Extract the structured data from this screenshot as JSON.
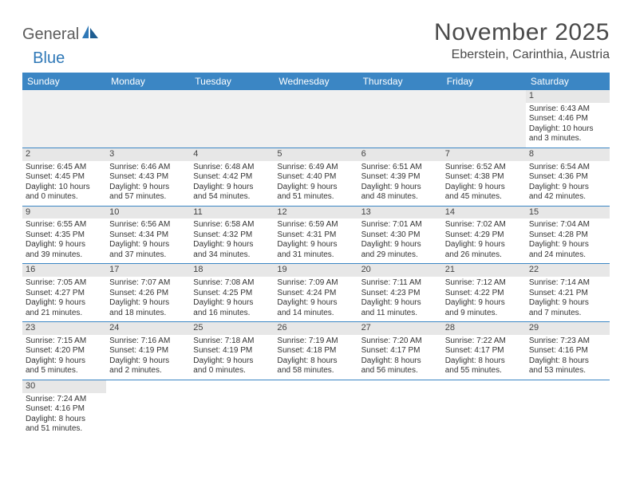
{
  "logo": {
    "text1": "General",
    "text2": "Blue"
  },
  "title": "November 2025",
  "location": "Eberstein, Carinthia, Austria",
  "colors": {
    "header_bg": "#3b86c4",
    "header_text": "#ffffff",
    "daynum_bg": "#e7e7e7",
    "row_divider": "#3b86c4",
    "empty_bg": "#f0f0f0",
    "body_text": "#333333",
    "logo_gray": "#5b5b5b",
    "logo_blue": "#2f78b7"
  },
  "weekdays": [
    "Sunday",
    "Monday",
    "Tuesday",
    "Wednesday",
    "Thursday",
    "Friday",
    "Saturday"
  ],
  "grid": [
    [
      {
        "empty": true
      },
      {
        "empty": true
      },
      {
        "empty": true
      },
      {
        "empty": true
      },
      {
        "empty": true
      },
      {
        "empty": true
      },
      {
        "day": "1",
        "sunrise": "Sunrise: 6:43 AM",
        "sunset": "Sunset: 4:46 PM",
        "daylight1": "Daylight: 10 hours",
        "daylight2": "and 3 minutes."
      }
    ],
    [
      {
        "day": "2",
        "sunrise": "Sunrise: 6:45 AM",
        "sunset": "Sunset: 4:45 PM",
        "daylight1": "Daylight: 10 hours",
        "daylight2": "and 0 minutes."
      },
      {
        "day": "3",
        "sunrise": "Sunrise: 6:46 AM",
        "sunset": "Sunset: 4:43 PM",
        "daylight1": "Daylight: 9 hours",
        "daylight2": "and 57 minutes."
      },
      {
        "day": "4",
        "sunrise": "Sunrise: 6:48 AM",
        "sunset": "Sunset: 4:42 PM",
        "daylight1": "Daylight: 9 hours",
        "daylight2": "and 54 minutes."
      },
      {
        "day": "5",
        "sunrise": "Sunrise: 6:49 AM",
        "sunset": "Sunset: 4:40 PM",
        "daylight1": "Daylight: 9 hours",
        "daylight2": "and 51 minutes."
      },
      {
        "day": "6",
        "sunrise": "Sunrise: 6:51 AM",
        "sunset": "Sunset: 4:39 PM",
        "daylight1": "Daylight: 9 hours",
        "daylight2": "and 48 minutes."
      },
      {
        "day": "7",
        "sunrise": "Sunrise: 6:52 AM",
        "sunset": "Sunset: 4:38 PM",
        "daylight1": "Daylight: 9 hours",
        "daylight2": "and 45 minutes."
      },
      {
        "day": "8",
        "sunrise": "Sunrise: 6:54 AM",
        "sunset": "Sunset: 4:36 PM",
        "daylight1": "Daylight: 9 hours",
        "daylight2": "and 42 minutes."
      }
    ],
    [
      {
        "day": "9",
        "sunrise": "Sunrise: 6:55 AM",
        "sunset": "Sunset: 4:35 PM",
        "daylight1": "Daylight: 9 hours",
        "daylight2": "and 39 minutes."
      },
      {
        "day": "10",
        "sunrise": "Sunrise: 6:56 AM",
        "sunset": "Sunset: 4:34 PM",
        "daylight1": "Daylight: 9 hours",
        "daylight2": "and 37 minutes."
      },
      {
        "day": "11",
        "sunrise": "Sunrise: 6:58 AM",
        "sunset": "Sunset: 4:32 PM",
        "daylight1": "Daylight: 9 hours",
        "daylight2": "and 34 minutes."
      },
      {
        "day": "12",
        "sunrise": "Sunrise: 6:59 AM",
        "sunset": "Sunset: 4:31 PM",
        "daylight1": "Daylight: 9 hours",
        "daylight2": "and 31 minutes."
      },
      {
        "day": "13",
        "sunrise": "Sunrise: 7:01 AM",
        "sunset": "Sunset: 4:30 PM",
        "daylight1": "Daylight: 9 hours",
        "daylight2": "and 29 minutes."
      },
      {
        "day": "14",
        "sunrise": "Sunrise: 7:02 AM",
        "sunset": "Sunset: 4:29 PM",
        "daylight1": "Daylight: 9 hours",
        "daylight2": "and 26 minutes."
      },
      {
        "day": "15",
        "sunrise": "Sunrise: 7:04 AM",
        "sunset": "Sunset: 4:28 PM",
        "daylight1": "Daylight: 9 hours",
        "daylight2": "and 24 minutes."
      }
    ],
    [
      {
        "day": "16",
        "sunrise": "Sunrise: 7:05 AM",
        "sunset": "Sunset: 4:27 PM",
        "daylight1": "Daylight: 9 hours",
        "daylight2": "and 21 minutes."
      },
      {
        "day": "17",
        "sunrise": "Sunrise: 7:07 AM",
        "sunset": "Sunset: 4:26 PM",
        "daylight1": "Daylight: 9 hours",
        "daylight2": "and 18 minutes."
      },
      {
        "day": "18",
        "sunrise": "Sunrise: 7:08 AM",
        "sunset": "Sunset: 4:25 PM",
        "daylight1": "Daylight: 9 hours",
        "daylight2": "and 16 minutes."
      },
      {
        "day": "19",
        "sunrise": "Sunrise: 7:09 AM",
        "sunset": "Sunset: 4:24 PM",
        "daylight1": "Daylight: 9 hours",
        "daylight2": "and 14 minutes."
      },
      {
        "day": "20",
        "sunrise": "Sunrise: 7:11 AM",
        "sunset": "Sunset: 4:23 PM",
        "daylight1": "Daylight: 9 hours",
        "daylight2": "and 11 minutes."
      },
      {
        "day": "21",
        "sunrise": "Sunrise: 7:12 AM",
        "sunset": "Sunset: 4:22 PM",
        "daylight1": "Daylight: 9 hours",
        "daylight2": "and 9 minutes."
      },
      {
        "day": "22",
        "sunrise": "Sunrise: 7:14 AM",
        "sunset": "Sunset: 4:21 PM",
        "daylight1": "Daylight: 9 hours",
        "daylight2": "and 7 minutes."
      }
    ],
    [
      {
        "day": "23",
        "sunrise": "Sunrise: 7:15 AM",
        "sunset": "Sunset: 4:20 PM",
        "daylight1": "Daylight: 9 hours",
        "daylight2": "and 5 minutes."
      },
      {
        "day": "24",
        "sunrise": "Sunrise: 7:16 AM",
        "sunset": "Sunset: 4:19 PM",
        "daylight1": "Daylight: 9 hours",
        "daylight2": "and 2 minutes."
      },
      {
        "day": "25",
        "sunrise": "Sunrise: 7:18 AM",
        "sunset": "Sunset: 4:19 PM",
        "daylight1": "Daylight: 9 hours",
        "daylight2": "and 0 minutes."
      },
      {
        "day": "26",
        "sunrise": "Sunrise: 7:19 AM",
        "sunset": "Sunset: 4:18 PM",
        "daylight1": "Daylight: 8 hours",
        "daylight2": "and 58 minutes."
      },
      {
        "day": "27",
        "sunrise": "Sunrise: 7:20 AM",
        "sunset": "Sunset: 4:17 PM",
        "daylight1": "Daylight: 8 hours",
        "daylight2": "and 56 minutes."
      },
      {
        "day": "28",
        "sunrise": "Sunrise: 7:22 AM",
        "sunset": "Sunset: 4:17 PM",
        "daylight1": "Daylight: 8 hours",
        "daylight2": "and 55 minutes."
      },
      {
        "day": "29",
        "sunrise": "Sunrise: 7:23 AM",
        "sunset": "Sunset: 4:16 PM",
        "daylight1": "Daylight: 8 hours",
        "daylight2": "and 53 minutes."
      }
    ],
    [
      {
        "day": "30",
        "sunrise": "Sunrise: 7:24 AM",
        "sunset": "Sunset: 4:16 PM",
        "daylight1": "Daylight: 8 hours",
        "daylight2": "and 51 minutes."
      },
      {
        "empty": true
      },
      {
        "empty": true
      },
      {
        "empty": true
      },
      {
        "empty": true
      },
      {
        "empty": true
      },
      {
        "empty": true
      }
    ]
  ]
}
